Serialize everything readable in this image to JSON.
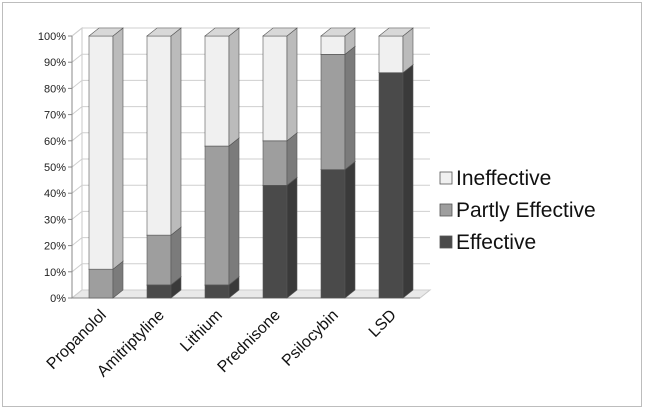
{
  "chart_data": {
    "type": "bar",
    "stacked": true,
    "percent": true,
    "three_d": true,
    "categories": [
      "Propanolol",
      "Amitriptyline",
      "Lithium",
      "Prednisone",
      "Psilocybin",
      "LSD"
    ],
    "series": [
      {
        "name": "Effective",
        "values": [
          0,
          5,
          5,
          43,
          49,
          86
        ],
        "color": "#4a4a4a"
      },
      {
        "name": "Partly Effective",
        "values": [
          11,
          19,
          53,
          17,
          44,
          0
        ],
        "color": "#9e9e9e"
      },
      {
        "name": "Ineffective",
        "values": [
          89,
          76,
          42,
          40,
          7,
          14
        ],
        "color": "#f0f0f0"
      }
    ],
    "ylim": [
      0,
      100
    ],
    "yticks": [
      "0%",
      "10%",
      "20%",
      "30%",
      "40%",
      "50%",
      "60%",
      "70%",
      "80%",
      "90%",
      "100%"
    ],
    "title": "",
    "xlabel": "",
    "ylabel": "",
    "grid": true,
    "legend_position": "right",
    "legend_order": [
      "Ineffective",
      "Partly Effective",
      "Effective"
    ]
  }
}
